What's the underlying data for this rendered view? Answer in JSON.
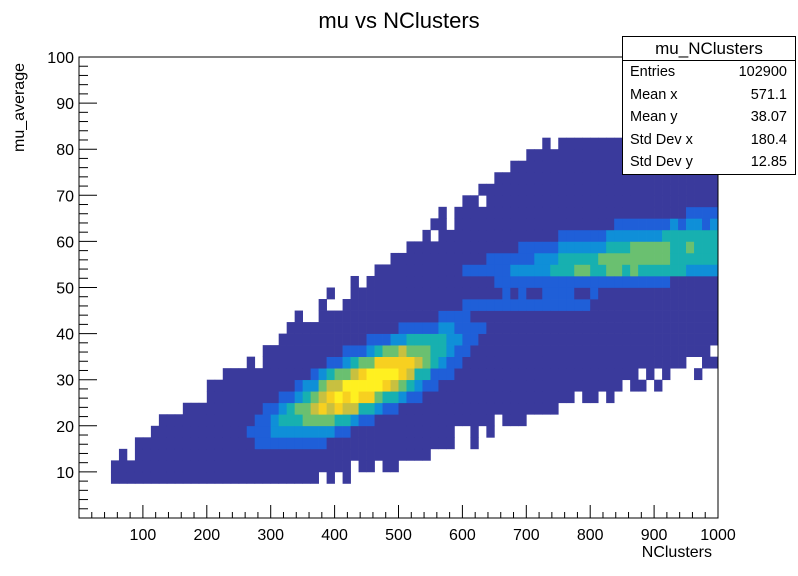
{
  "chart_data": {
    "type": "heatmap",
    "title": "mu vs NClusters",
    "xlabel": "NClusters",
    "ylabel": "mu_average",
    "xlim": [
      0,
      1000
    ],
    "ylim": [
      0,
      100
    ],
    "x_ticks": [
      "100",
      "200",
      "300",
      "400",
      "500",
      "600",
      "700",
      "800",
      "900",
      "1000"
    ],
    "y_ticks": [
      "10",
      "20",
      "30",
      "40",
      "50",
      "60",
      "70",
      "80",
      "90",
      "100"
    ],
    "colormap": [
      "#3a3a9c",
      "#1f5fd8",
      "#0f8fd8",
      "#17b0b0",
      "#6ac070",
      "#c8c040",
      "#f7d020",
      "#fff020"
    ],
    "features": {
      "ridge_low": {
        "y_at_x0": 0,
        "slope": 0.065,
        "width": 4.5,
        "x_peak": 450,
        "x_spread": 90
      },
      "ridge_high": {
        "y_at_x0": 37,
        "slope": 0.022,
        "width": 5.0,
        "x_peak": 880,
        "x_spread": 180
      },
      "gap_y": 50,
      "populated_range": {
        "lower_y_at_x0": -3,
        "lower_slope": 0.043,
        "upper_y_at_x0": 2,
        "upper_slope": 0.1
      }
    }
  },
  "stats": {
    "name": "mu_NClusters",
    "rows": [
      {
        "label": "Entries",
        "value": "102900"
      },
      {
        "label": "Mean x",
        "value": "571.1"
      },
      {
        "label": "Mean y",
        "value": "38.07"
      },
      {
        "label": "Std Dev x",
        "value": "180.4"
      },
      {
        "label": "Std Dev y",
        "value": "12.85"
      }
    ]
  }
}
